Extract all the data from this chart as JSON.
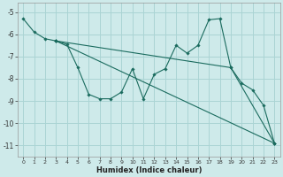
{
  "xlabel": "Humidex (Indice chaleur)",
  "bg_color": "#ceeaea",
  "grid_color": "#aad4d4",
  "line_color": "#1a6b5e",
  "xlim": [
    -0.5,
    23.5
  ],
  "ylim": [
    -11.5,
    -4.6
  ],
  "yticks": [
    -11,
    -10,
    -9,
    -8,
    -7,
    -6,
    -5
  ],
  "xticks": [
    0,
    1,
    2,
    3,
    4,
    5,
    6,
    7,
    8,
    9,
    10,
    11,
    12,
    13,
    14,
    15,
    16,
    17,
    18,
    19,
    20,
    21,
    22,
    23
  ],
  "series": [
    {
      "x": [
        0,
        1,
        2,
        3
      ],
      "y": [
        -5.3,
        -5.9,
        -6.2,
        -6.3
      ]
    },
    {
      "x": [
        3,
        4,
        5,
        6,
        7,
        8,
        9,
        10,
        11,
        12,
        13,
        14,
        15,
        16,
        17,
        18,
        19,
        20,
        21,
        22,
        23
      ],
      "y": [
        -6.3,
        -6.45,
        -7.5,
        -8.7,
        -8.9,
        -8.9,
        -8.6,
        -7.55,
        -8.9,
        -7.8,
        -7.55,
        -6.5,
        -6.85,
        -6.5,
        -5.35,
        -5.3,
        -7.5,
        -8.2,
        -8.5,
        -9.2,
        -10.9
      ]
    },
    {
      "x": [
        3,
        23
      ],
      "y": [
        -6.3,
        -10.9
      ]
    },
    {
      "x": [
        3,
        19,
        23
      ],
      "y": [
        -6.3,
        -7.5,
        -10.9
      ]
    }
  ]
}
